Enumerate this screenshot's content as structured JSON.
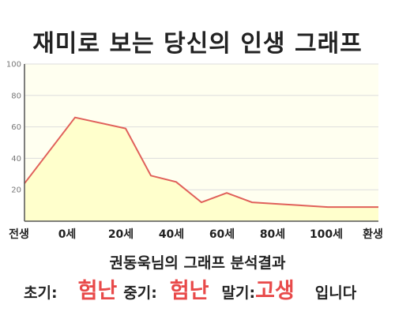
{
  "title": "재미로 보는 당신의 인생 그래프",
  "analysis_title": "권동욱님의 그래프 분석결과",
  "result": {
    "early_label": "초기:",
    "early_value": "험난",
    "middle_label": "중기:",
    "middle_value": "험난",
    "late_label": "말기:",
    "late_value": "고생",
    "suffix": "입니다"
  },
  "colors": {
    "line": "#e0605a",
    "fill": "#ffffcc",
    "plot_bg": "#fffff0",
    "grid": "#dddddd",
    "accent": "#e84a4a"
  },
  "chart_data": {
    "type": "area",
    "title": "재미로 보는 당신의 인생 그래프",
    "xlabel": "",
    "ylabel": "",
    "ylim": [
      0,
      100
    ],
    "y_ticks": [
      "100",
      "80",
      "60",
      "40",
      "20"
    ],
    "x_tick_labels": [
      "전생",
      "0세",
      "20세",
      "40세",
      "60세",
      "80세",
      "100세",
      "환생"
    ],
    "grid": true,
    "series": [
      {
        "points": [
          {
            "x": 0,
            "y": 24
          },
          {
            "x": 2,
            "y": 66
          },
          {
            "x": 4,
            "y": 59
          },
          {
            "x": 5,
            "y": 29
          },
          {
            "x": 6,
            "y": 25
          },
          {
            "x": 7,
            "y": 12
          },
          {
            "x": 8,
            "y": 18
          },
          {
            "x": 9,
            "y": 12
          },
          {
            "x": 10,
            "y": 11
          },
          {
            "x": 11,
            "y": 10
          },
          {
            "x": 12,
            "y": 9
          },
          {
            "x": 13,
            "y": 9
          },
          {
            "x": 14,
            "y": 9
          }
        ]
      }
    ],
    "x_range": [
      0,
      14
    ]
  }
}
